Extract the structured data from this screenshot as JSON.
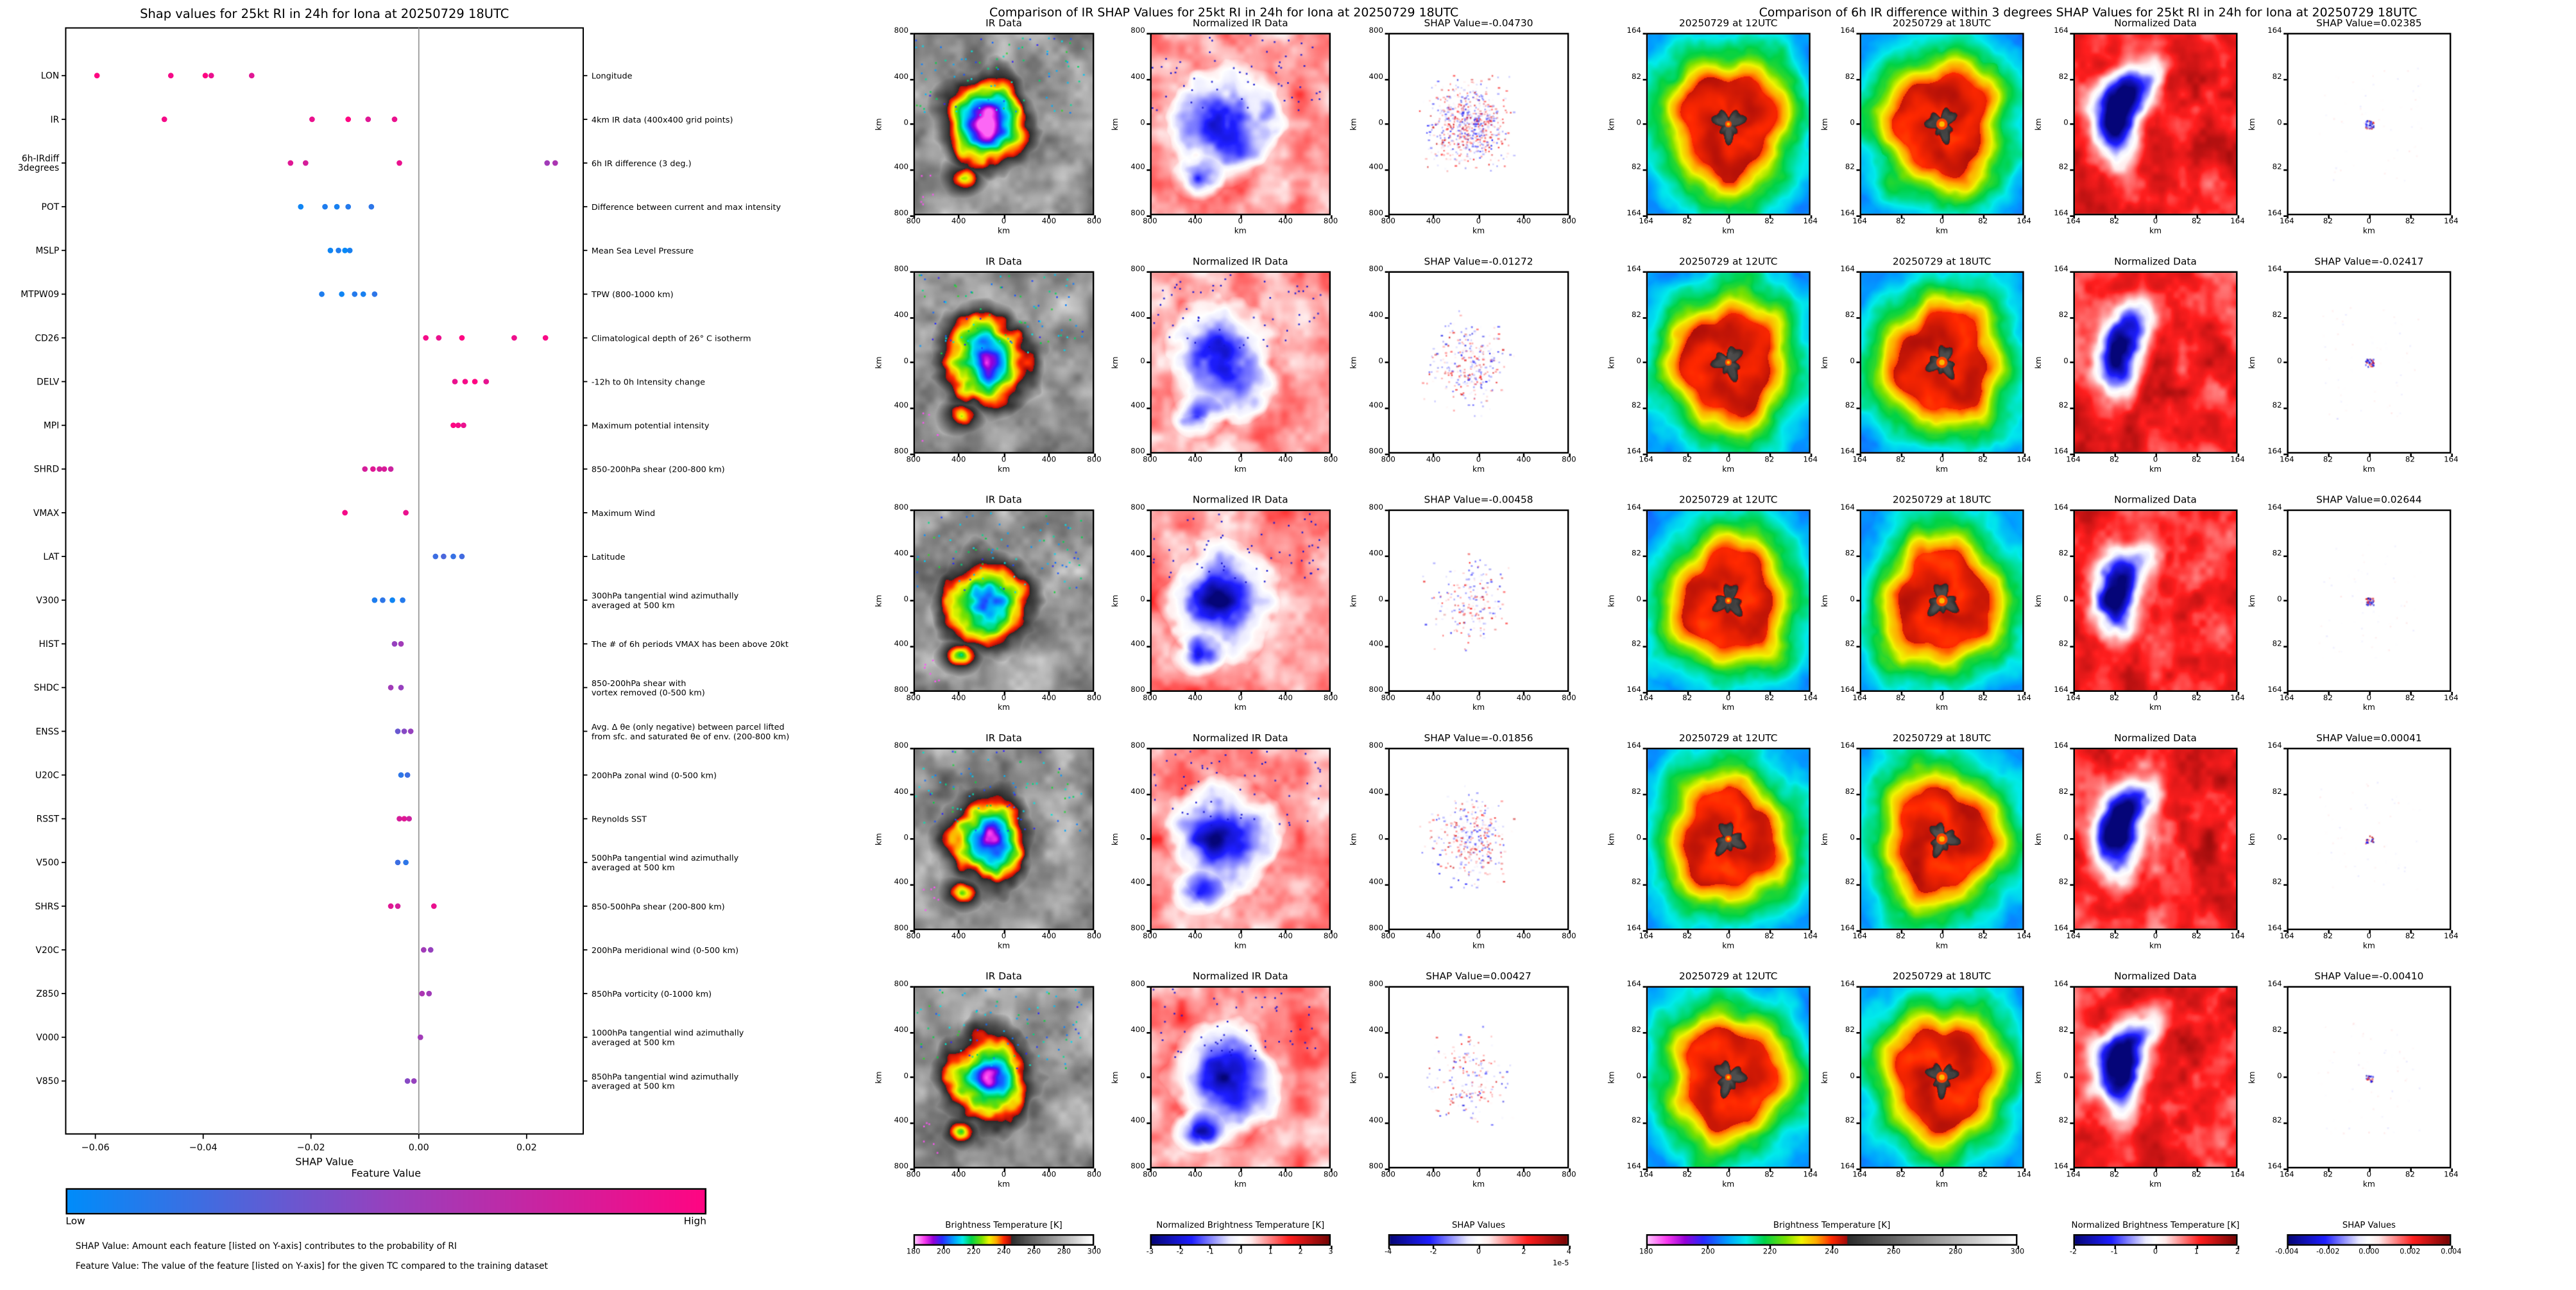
{
  "chart_data": [
    {
      "type": "scatter",
      "title": "Shap values for 25kt RI in 24h for Iona at 20250729 18UTC",
      "xlabel": "SHAP Value",
      "xlim": [
        -0.0655,
        0.0305
      ],
      "x_ticks": [
        -0.06,
        -0.04,
        -0.02,
        0.0,
        0.02
      ],
      "x_tick_labels": [
        "−0.06",
        "−0.04",
        "−0.02",
        "0.00",
        "0.02"
      ],
      "legend_position": "bottom",
      "grid": false,
      "features": [
        {
          "name": "LON",
          "desc": "Longitude",
          "points": [
            [
              -0.0597,
              1.0
            ],
            [
              -0.046,
              0.95
            ],
            [
              -0.0396,
              1.0
            ],
            [
              -0.0385,
              0.9
            ],
            [
              -0.031,
              0.85
            ]
          ]
        },
        {
          "name": "IR",
          "desc": "4km IR data (400x400 grid points)",
          "points": [
            [
              -0.0472,
              0.95
            ],
            [
              -0.0198,
              0.9
            ],
            [
              -0.0131,
              1.0
            ],
            [
              -0.0094,
              0.85
            ],
            [
              -0.0045,
              0.9
            ]
          ]
        },
        {
          "name": "6h-IRdiff\n3degrees",
          "desc": "6h IR difference (3 deg.)",
          "points": [
            [
              -0.0238,
              0.85
            ],
            [
              -0.021,
              0.8
            ],
            [
              -0.0036,
              0.9
            ],
            [
              0.0238,
              0.55
            ],
            [
              0.0253,
              0.6
            ]
          ]
        },
        {
          "name": "POT",
          "desc": "Difference between current and max intensity",
          "points": [
            [
              -0.0219,
              0.05
            ],
            [
              -0.0174,
              0.1
            ],
            [
              -0.0152,
              0.08
            ],
            [
              -0.0131,
              0.12
            ],
            [
              -0.0088,
              0.15
            ]
          ]
        },
        {
          "name": "MSLP",
          "desc": "Mean Sea Level Pressure",
          "points": [
            [
              -0.0164,
              0.05
            ],
            [
              -0.0149,
              0.1
            ],
            [
              -0.0137,
              0.02
            ],
            [
              -0.0128,
              0.08
            ]
          ]
        },
        {
          "name": "MTPW09",
          "desc": "TPW (800-1000 km)",
          "points": [
            [
              -0.018,
              0.1
            ],
            [
              -0.0143,
              0.05
            ],
            [
              -0.0119,
              0.12
            ],
            [
              -0.0103,
              0.08
            ],
            [
              -0.0082,
              0.15
            ]
          ]
        },
        {
          "name": "CD26",
          "desc": "Climatological depth of 26° C isotherm",
          "points": [
            [
              0.0013,
              0.95
            ],
            [
              0.0037,
              0.9
            ],
            [
              0.008,
              1.0
            ],
            [
              0.0177,
              0.92
            ],
            [
              0.0235,
              0.97
            ]
          ]
        },
        {
          "name": "DELV",
          "desc": "-12h to 0h Intensity change",
          "points": [
            [
              0.0067,
              0.9
            ],
            [
              0.0086,
              0.95
            ],
            [
              0.0104,
              1.0
            ],
            [
              0.0125,
              0.88
            ]
          ]
        },
        {
          "name": "MPI",
          "desc": "Maximum potential intensity",
          "points": [
            [
              0.0064,
              1.0
            ],
            [
              0.0073,
              0.95
            ],
            [
              0.0083,
              0.9
            ]
          ]
        },
        {
          "name": "SHRD",
          "desc": "850-200hPa shear (200-800 km)",
          "points": [
            [
              -0.01,
              0.8
            ],
            [
              -0.0085,
              0.85
            ],
            [
              -0.0073,
              0.78
            ],
            [
              -0.0064,
              0.82
            ],
            [
              -0.0052,
              0.75
            ]
          ]
        },
        {
          "name": "VMAX",
          "desc": "Maximum Wind",
          "points": [
            [
              -0.0137,
              0.95
            ],
            [
              -0.0024,
              0.9
            ]
          ]
        },
        {
          "name": "LAT",
          "desc": "Latitude",
          "points": [
            [
              0.0031,
              0.2
            ],
            [
              0.0046,
              0.25
            ],
            [
              0.0064,
              0.18
            ],
            [
              0.008,
              0.22
            ]
          ]
        },
        {
          "name": "V300",
          "desc": "300hPa tangential wind azimuthally\naveraged at 500 km",
          "points": [
            [
              -0.0082,
              0.1
            ],
            [
              -0.0067,
              0.15
            ],
            [
              -0.0049,
              0.05
            ],
            [
              -0.003,
              0.12
            ]
          ]
        },
        {
          "name": "HIST",
          "desc": "The # of 6h periods VMAX has been above 20kt",
          "points": [
            [
              -0.0045,
              0.5
            ],
            [
              -0.0033,
              0.55
            ]
          ]
        },
        {
          "name": "SHDC",
          "desc": "850-200hPa shear with\nvortex removed (0-500 km)",
          "points": [
            [
              -0.0052,
              0.55
            ],
            [
              -0.0033,
              0.5
            ]
          ]
        },
        {
          "name": "ENSS",
          "desc": "Avg. Δ θe (only negative) between parcel lifted\nfrom sfc. and saturated θe of env. (200-800 km)",
          "points": [
            [
              -0.0039,
              0.35
            ],
            [
              -0.0027,
              0.45
            ],
            [
              -0.0015,
              0.5
            ]
          ]
        },
        {
          "name": "U20C",
          "desc": "200hPa zonal wind (0-500 km)",
          "points": [
            [
              -0.0033,
              0.15
            ],
            [
              -0.0021,
              0.2
            ]
          ]
        },
        {
          "name": "RSST",
          "desc": "Reynolds SST",
          "points": [
            [
              -0.0036,
              0.8
            ],
            [
              -0.0027,
              0.85
            ],
            [
              -0.0018,
              0.75
            ]
          ]
        },
        {
          "name": "V500",
          "desc": "500hPa tangential wind azimuthally\naveraged at 500 km",
          "points": [
            [
              -0.0039,
              0.2
            ],
            [
              -0.0024,
              0.15
            ]
          ]
        },
        {
          "name": "SHRS",
          "desc": "850-500hPa shear (200-800 km)",
          "points": [
            [
              -0.0052,
              0.85
            ],
            [
              -0.0039,
              0.8
            ],
            [
              0.0028,
              0.9
            ]
          ]
        },
        {
          "name": "V20C",
          "desc": "200hPa meridional wind (0-500 km)",
          "points": [
            [
              0.0009,
              0.55
            ],
            [
              0.0022,
              0.5
            ]
          ]
        },
        {
          "name": "Z850",
          "desc": "850hPa vorticity (0-1000 km)",
          "points": [
            [
              0.0006,
              0.6
            ],
            [
              0.0019,
              0.55
            ]
          ]
        },
        {
          "name": "V000",
          "desc": "1000hPa tangential wind azimuthally\naveraged at 500 km",
          "points": [
            [
              0.0003,
              0.55
            ]
          ]
        },
        {
          "name": "V850",
          "desc": "850hPa tangential wind azimuthally\naveraged at 500 km",
          "points": [
            [
              -0.0021,
              0.45
            ],
            [
              -0.0009,
              0.5
            ]
          ]
        }
      ],
      "colorbar": {
        "title": "Feature Value",
        "low": "Low",
        "high": "High",
        "colors": [
          "#008cfa",
          "#96419e",
          "#ff0582"
        ]
      },
      "footnotes": [
        "SHAP Value: Amount each feature [listed on Y-axis] contributes to the probability of RI",
        "Feature Value: The value of the feature [listed on Y-axis] for the given TC compared to the training dataset"
      ]
    },
    {
      "type": "heatmap",
      "title": "Comparison of IR SHAP Values for 25kt RI in 24h for Iona at 20250729 18UTC",
      "col_titles": [
        "IR Data",
        "Normalized IR Data"
      ],
      "shap_labels": [
        "SHAP Value=-0.04730",
        "SHAP Value=-0.01272",
        "SHAP Value=-0.00458",
        "SHAP Value=-0.01856",
        "SHAP Value=0.00427"
      ],
      "axis_ticks": [
        "800",
        "400",
        "0",
        "400",
        "800"
      ],
      "axis_unit": "km",
      "colorbars": [
        {
          "label": "Brightness Temperature [K]",
          "ticks": [
            "180",
            "200",
            "220",
            "240",
            "260",
            "280",
            "300"
          ],
          "cmap": "ir"
        },
        {
          "label": "Normalized Brightness Temperature [K]",
          "ticks": [
            "-3",
            "-2",
            "-1",
            "0",
            "1",
            "2",
            "3"
          ],
          "cmap": "seismic"
        },
        {
          "label": "SHAP Values",
          "ticks": [
            "-4",
            "-2",
            "0",
            "2",
            "4"
          ],
          "cmap": "seismic",
          "scale_note": "1e-5"
        }
      ]
    },
    {
      "type": "heatmap",
      "title": "Comparison of 6h IR difference within 3 degrees SHAP Values for 25kt RI in 24h for Iona at 20250729 18UTC",
      "col_titles": [
        "20250729 at 12UTC",
        "20250729 at 18UTC",
        "Normalized Data"
      ],
      "shap_labels": [
        "SHAP Value=0.02385",
        "SHAP Value=-0.02417",
        "SHAP Value=0.02644",
        "SHAP Value=0.00041",
        "SHAP Value=-0.00410"
      ],
      "axis_ticks": [
        "164",
        "82",
        "0",
        "82",
        "164"
      ],
      "axis_unit": "km",
      "colorbars": [
        {
          "label": "Brightness Temperature [K]",
          "ticks": [
            "180",
            "200",
            "220",
            "240",
            "260",
            "280",
            "300"
          ],
          "cmap": "ir"
        },
        {
          "label": "Normalized Brightness Temperature [K]",
          "ticks": [
            "-2",
            "-1",
            "0",
            "1",
            "2"
          ],
          "cmap": "seismic"
        },
        {
          "label": "SHAP Values",
          "ticks": [
            "-0.004",
            "-0.002",
            "0.000",
            "0.002",
            "0.004"
          ],
          "cmap": "seismic"
        }
      ]
    }
  ]
}
